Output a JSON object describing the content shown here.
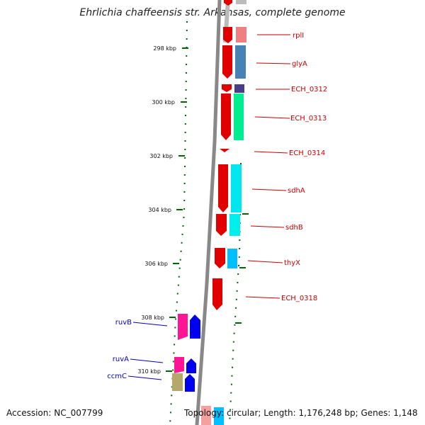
{
  "title": "Ehrlichia chaffeensis str. Arkansas, complete genome",
  "accession": "Accession: NC_007799",
  "summary": "Topology: circular; Length: 1,176,248 bp; Genes: 1,148",
  "scale_labels": [
    "298 kbp",
    "300 kbp",
    "302 kbp",
    "304 kbp",
    "306 kbp",
    "308 kbp",
    "310 kbp"
  ],
  "right_genes": [
    "rplI",
    "glyA",
    "ECH_0312",
    "ECH_0313",
    "ECH_0314",
    "sdhA",
    "sdhB",
    "thyX",
    "ECH_0318"
  ],
  "left_genes": [
    "ruvB",
    "ruvA",
    "ccmC"
  ],
  "colors": {
    "right_label": "#cc0000",
    "left_label": "#0000cc",
    "scale": "#006600",
    "backbone": "#888888"
  }
}
